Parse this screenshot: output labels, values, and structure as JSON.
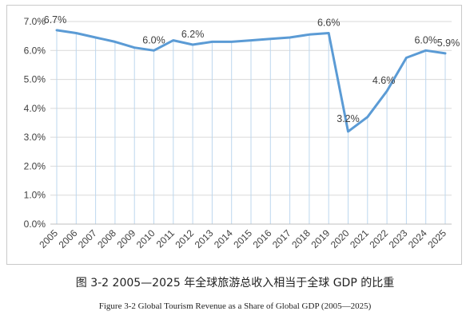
{
  "caption_cn": "图 3-2  2005—2025 年全球旅游总收入相当于全球 GDP 的比重",
  "caption_en": "Figure 3-2  Global Tourism Revenue as a Share of Global GDP (2005—2025)",
  "colors": {
    "line": "#5b9bd5",
    "drop": "#bdd7ee",
    "grid": "#d9d9d9",
    "axis": "#bfbfbf",
    "text": "#404040"
  },
  "chart_data": {
    "type": "line",
    "title": "",
    "xlabel": "",
    "ylabel": "",
    "ylim": [
      0,
      7
    ],
    "y_ticks": [
      "0.0%",
      "1.0%",
      "2.0%",
      "3.0%",
      "4.0%",
      "5.0%",
      "6.0%",
      "7.0%"
    ],
    "y_tick_values": [
      0,
      1,
      2,
      3,
      4,
      5,
      6,
      7
    ],
    "grid": true,
    "legend": "none",
    "categories": [
      "2005",
      "2006",
      "2007",
      "2008",
      "2009",
      "2010",
      "2011",
      "2012",
      "2013",
      "2014",
      "2015",
      "2016",
      "2017",
      "2018",
      "2019",
      "2020",
      "2021",
      "2022",
      "2023",
      "2024",
      "2025"
    ],
    "series": [
      {
        "values": [
          6.7,
          6.6,
          6.45,
          6.3,
          6.1,
          6.0,
          6.35,
          6.2,
          6.3,
          6.3,
          6.35,
          6.4,
          6.45,
          6.55,
          6.6,
          3.2,
          3.7,
          4.6,
          5.75,
          6.0,
          5.9
        ]
      }
    ],
    "data_labels": [
      {
        "index": 0,
        "text": "6.7%"
      },
      {
        "index": 5,
        "text": "6.0%"
      },
      {
        "index": 7,
        "text": "6.2%"
      },
      {
        "index": 14,
        "text": "6.6%"
      },
      {
        "index": 15,
        "text": "3.2%"
      },
      {
        "index": 17,
        "text": "4.6%"
      },
      {
        "index": 19,
        "text": "6.0%"
      },
      {
        "index": 20,
        "text": "5.9%"
      }
    ]
  }
}
